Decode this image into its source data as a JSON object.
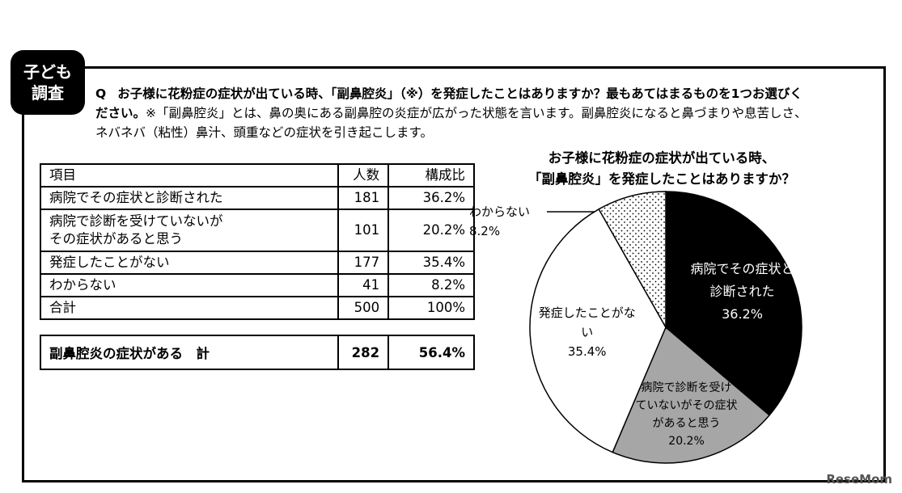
{
  "badge": {
    "line1": "子ども",
    "line2": "調査"
  },
  "question": {
    "q_mark": "Q",
    "line1": "お子様に花粉症の症状が出ている時、「副鼻腔炎」（※）を発症したことはありますか？最も​あてはまるものを1つお選びく",
    "line2_prefix": "ださい。",
    "line2_note": "※「副鼻腔炎」とは、鼻の奥にある副鼻腔の炎症が広がった状態を言います。副鼻腔炎になると鼻づまりや息苦しさ、",
    "line3": "ネバネバ（粘性）鼻汁、頭重などの症状を引き起こします。"
  },
  "table": {
    "headers": {
      "item": "項目",
      "count": "人数",
      "ratio": "構成比"
    },
    "rows": [
      {
        "item": "病院でその症状と診断された",
        "count": "181",
        "ratio": "36.2%"
      },
      {
        "item_line1": "病院で診断を受けていないが",
        "item_line2": "その症状があると思う",
        "count": "101",
        "ratio": "20.2%"
      },
      {
        "item": "発症したことがない",
        "count": "177",
        "ratio": "35.4%"
      },
      {
        "item": "わからない",
        "count": "41",
        "ratio": "8.2%"
      },
      {
        "item": "合計",
        "count": "500",
        "ratio": "100%"
      }
    ],
    "summary": {
      "item": "副鼻腔炎の症状がある　計",
      "count": "282",
      "ratio": "56.4%"
    }
  },
  "chart_data": {
    "type": "pie",
    "title_line1": "お子様に花粉症の症状が出ている時、",
    "title_line2": "「副鼻腔炎」を発症したことはありますか？",
    "slices": [
      {
        "label_lines": [
          "病院でその症状と",
          "診断された"
        ],
        "value": 36.2,
        "value_label": "36.2%",
        "fill": "#000000"
      },
      {
        "label_lines": [
          "病院で診断を受け",
          "ていないがその症状",
          "があると思う"
        ],
        "value": 20.2,
        "value_label": "20.2%",
        "fill": "#a6a6a6"
      },
      {
        "label_lines": [
          "発症したことがな",
          "い"
        ],
        "value": 35.4,
        "value_label": "35.4%",
        "fill": "#ffffff"
      },
      {
        "label_lines": [
          "わからない"
        ],
        "value": 8.2,
        "value_label": "8.2%",
        "fill": "dotted"
      }
    ]
  },
  "watermark": "ReseMom"
}
